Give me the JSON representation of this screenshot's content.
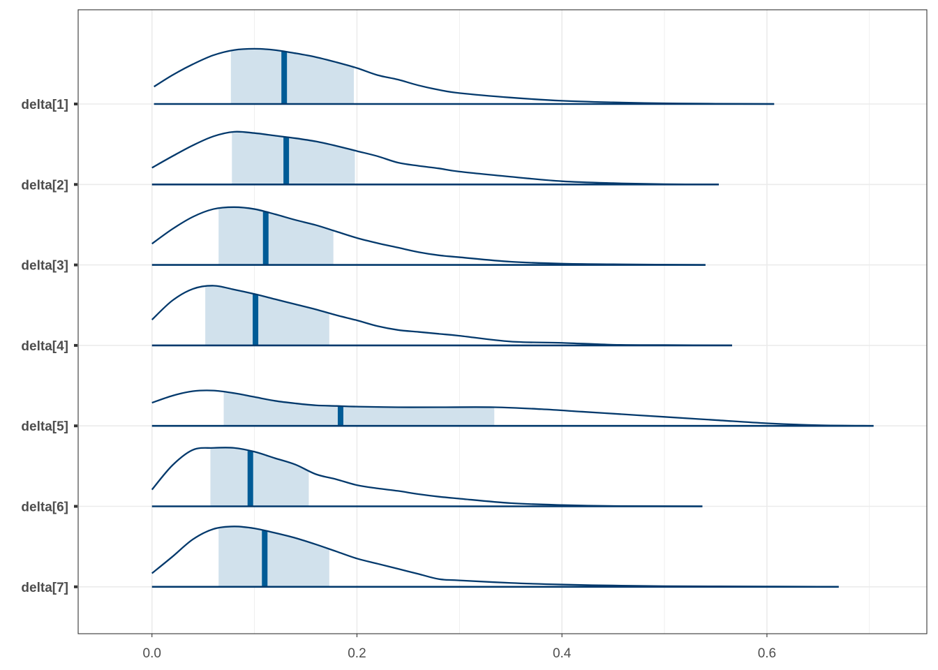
{
  "chart_data": {
    "type": "ridgeline",
    "title": "",
    "xlabel": "",
    "ylabel": "",
    "xlim": [
      -0.072,
      0.756
    ],
    "x_ticks": [
      0.0,
      0.2,
      0.4,
      0.6
    ],
    "x_tick_labels": [
      "0.0",
      "0.2",
      "0.4",
      "0.6"
    ],
    "grid": true,
    "inner_interval": "50%",
    "colors": {
      "density_line": "#03396c",
      "interval_fill": "#d1e1ec",
      "median_line": "#005b96",
      "grid": "#ebebeb",
      "panel_border": "#333333",
      "tick_text": "#4d4d4d"
    },
    "series": [
      {
        "name": "delta[1]",
        "range": [
          0.002,
          0.607
        ],
        "interval": [
          0.077,
          0.197
        ],
        "median": 0.129,
        "density": [
          [
            0.002,
            0.27
          ],
          [
            0.02,
            0.45
          ],
          [
            0.04,
            0.62
          ],
          [
            0.06,
            0.76
          ],
          [
            0.08,
            0.84
          ],
          [
            0.1,
            0.86
          ],
          [
            0.12,
            0.84
          ],
          [
            0.14,
            0.79
          ],
          [
            0.16,
            0.73
          ],
          [
            0.18,
            0.65
          ],
          [
            0.2,
            0.56
          ],
          [
            0.22,
            0.45
          ],
          [
            0.24,
            0.38
          ],
          [
            0.26,
            0.29
          ],
          [
            0.28,
            0.22
          ],
          [
            0.3,
            0.17
          ],
          [
            0.35,
            0.1
          ],
          [
            0.4,
            0.05
          ],
          [
            0.45,
            0.025
          ],
          [
            0.5,
            0.01
          ],
          [
            0.55,
            0.004
          ],
          [
            0.607,
            0.0
          ]
        ]
      },
      {
        "name": "delta[2]",
        "range": [
          0.0,
          0.553
        ],
        "interval": [
          0.078,
          0.198
        ],
        "median": 0.131,
        "density": [
          [
            0.0,
            0.26
          ],
          [
            0.02,
            0.44
          ],
          [
            0.04,
            0.61
          ],
          [
            0.06,
            0.75
          ],
          [
            0.08,
            0.82
          ],
          [
            0.1,
            0.8
          ],
          [
            0.12,
            0.76
          ],
          [
            0.14,
            0.72
          ],
          [
            0.16,
            0.67
          ],
          [
            0.18,
            0.6
          ],
          [
            0.2,
            0.52
          ],
          [
            0.22,
            0.44
          ],
          [
            0.24,
            0.34
          ],
          [
            0.26,
            0.29
          ],
          [
            0.28,
            0.25
          ],
          [
            0.3,
            0.2
          ],
          [
            0.35,
            0.12
          ],
          [
            0.4,
            0.05
          ],
          [
            0.45,
            0.02
          ],
          [
            0.5,
            0.005
          ],
          [
            0.553,
            0.0
          ]
        ]
      },
      {
        "name": "delta[3]",
        "range": [
          0.0,
          0.54
        ],
        "interval": [
          0.065,
          0.177
        ],
        "median": 0.111,
        "density": [
          [
            0.0,
            0.33
          ],
          [
            0.02,
            0.56
          ],
          [
            0.04,
            0.75
          ],
          [
            0.06,
            0.87
          ],
          [
            0.08,
            0.9
          ],
          [
            0.1,
            0.87
          ],
          [
            0.12,
            0.79
          ],
          [
            0.14,
            0.7
          ],
          [
            0.16,
            0.62
          ],
          [
            0.18,
            0.52
          ],
          [
            0.2,
            0.42
          ],
          [
            0.22,
            0.34
          ],
          [
            0.24,
            0.27
          ],
          [
            0.26,
            0.2
          ],
          [
            0.28,
            0.15
          ],
          [
            0.3,
            0.12
          ],
          [
            0.35,
            0.05
          ],
          [
            0.4,
            0.02
          ],
          [
            0.45,
            0.01
          ],
          [
            0.54,
            0.0
          ]
        ]
      },
      {
        "name": "delta[4]",
        "range": [
          0.0,
          0.566
        ],
        "interval": [
          0.052,
          0.173
        ],
        "median": 0.101,
        "density": [
          [
            0.0,
            0.4
          ],
          [
            0.02,
            0.7
          ],
          [
            0.04,
            0.88
          ],
          [
            0.06,
            0.93
          ],
          [
            0.08,
            0.87
          ],
          [
            0.1,
            0.8
          ],
          [
            0.12,
            0.72
          ],
          [
            0.14,
            0.64
          ],
          [
            0.16,
            0.56
          ],
          [
            0.18,
            0.47
          ],
          [
            0.2,
            0.39
          ],
          [
            0.22,
            0.3
          ],
          [
            0.24,
            0.24
          ],
          [
            0.26,
            0.21
          ],
          [
            0.28,
            0.18
          ],
          [
            0.3,
            0.15
          ],
          [
            0.35,
            0.06
          ],
          [
            0.4,
            0.04
          ],
          [
            0.45,
            0.01
          ],
          [
            0.5,
            0.005
          ],
          [
            0.566,
            0.0
          ]
        ]
      },
      {
        "name": "delta[5]",
        "range": [
          0.0,
          0.704
        ],
        "interval": [
          0.07,
          0.334
        ],
        "median": 0.184,
        "density": [
          [
            0.0,
            0.36
          ],
          [
            0.02,
            0.47
          ],
          [
            0.04,
            0.54
          ],
          [
            0.06,
            0.55
          ],
          [
            0.08,
            0.51
          ],
          [
            0.1,
            0.45
          ],
          [
            0.12,
            0.39
          ],
          [
            0.14,
            0.35
          ],
          [
            0.16,
            0.32
          ],
          [
            0.18,
            0.31
          ],
          [
            0.2,
            0.3
          ],
          [
            0.24,
            0.29
          ],
          [
            0.28,
            0.29
          ],
          [
            0.334,
            0.29
          ],
          [
            0.38,
            0.26
          ],
          [
            0.42,
            0.22
          ],
          [
            0.46,
            0.18
          ],
          [
            0.5,
            0.14
          ],
          [
            0.55,
            0.09
          ],
          [
            0.6,
            0.04
          ],
          [
            0.65,
            0.01
          ],
          [
            0.704,
            0.0
          ]
        ]
      },
      {
        "name": "delta[6]",
        "range": [
          0.0,
          0.537
        ],
        "interval": [
          0.057,
          0.153
        ],
        "median": 0.096,
        "density": [
          [
            0.0,
            0.26
          ],
          [
            0.02,
            0.64
          ],
          [
            0.04,
            0.88
          ],
          [
            0.06,
            0.91
          ],
          [
            0.08,
            0.91
          ],
          [
            0.1,
            0.85
          ],
          [
            0.12,
            0.75
          ],
          [
            0.14,
            0.65
          ],
          [
            0.16,
            0.5
          ],
          [
            0.18,
            0.42
          ],
          [
            0.2,
            0.33
          ],
          [
            0.22,
            0.28
          ],
          [
            0.24,
            0.24
          ],
          [
            0.26,
            0.19
          ],
          [
            0.28,
            0.15
          ],
          [
            0.3,
            0.12
          ],
          [
            0.35,
            0.05
          ],
          [
            0.4,
            0.02
          ],
          [
            0.45,
            0.005
          ],
          [
            0.537,
            0.0
          ]
        ]
      },
      {
        "name": "delta[7]",
        "range": [
          0.0,
          0.67
        ],
        "interval": [
          0.065,
          0.173
        ],
        "median": 0.11,
        "density": [
          [
            0.0,
            0.21
          ],
          [
            0.02,
            0.47
          ],
          [
            0.04,
            0.74
          ],
          [
            0.06,
            0.9
          ],
          [
            0.08,
            0.94
          ],
          [
            0.1,
            0.91
          ],
          [
            0.12,
            0.84
          ],
          [
            0.14,
            0.76
          ],
          [
            0.16,
            0.66
          ],
          [
            0.18,
            0.55
          ],
          [
            0.2,
            0.44
          ],
          [
            0.22,
            0.36
          ],
          [
            0.24,
            0.28
          ],
          [
            0.26,
            0.2
          ],
          [
            0.28,
            0.12
          ],
          [
            0.3,
            0.1
          ],
          [
            0.35,
            0.06
          ],
          [
            0.4,
            0.035
          ],
          [
            0.45,
            0.02
          ],
          [
            0.5,
            0.01
          ],
          [
            0.6,
            0.005
          ],
          [
            0.67,
            0.0
          ]
        ]
      }
    ]
  }
}
